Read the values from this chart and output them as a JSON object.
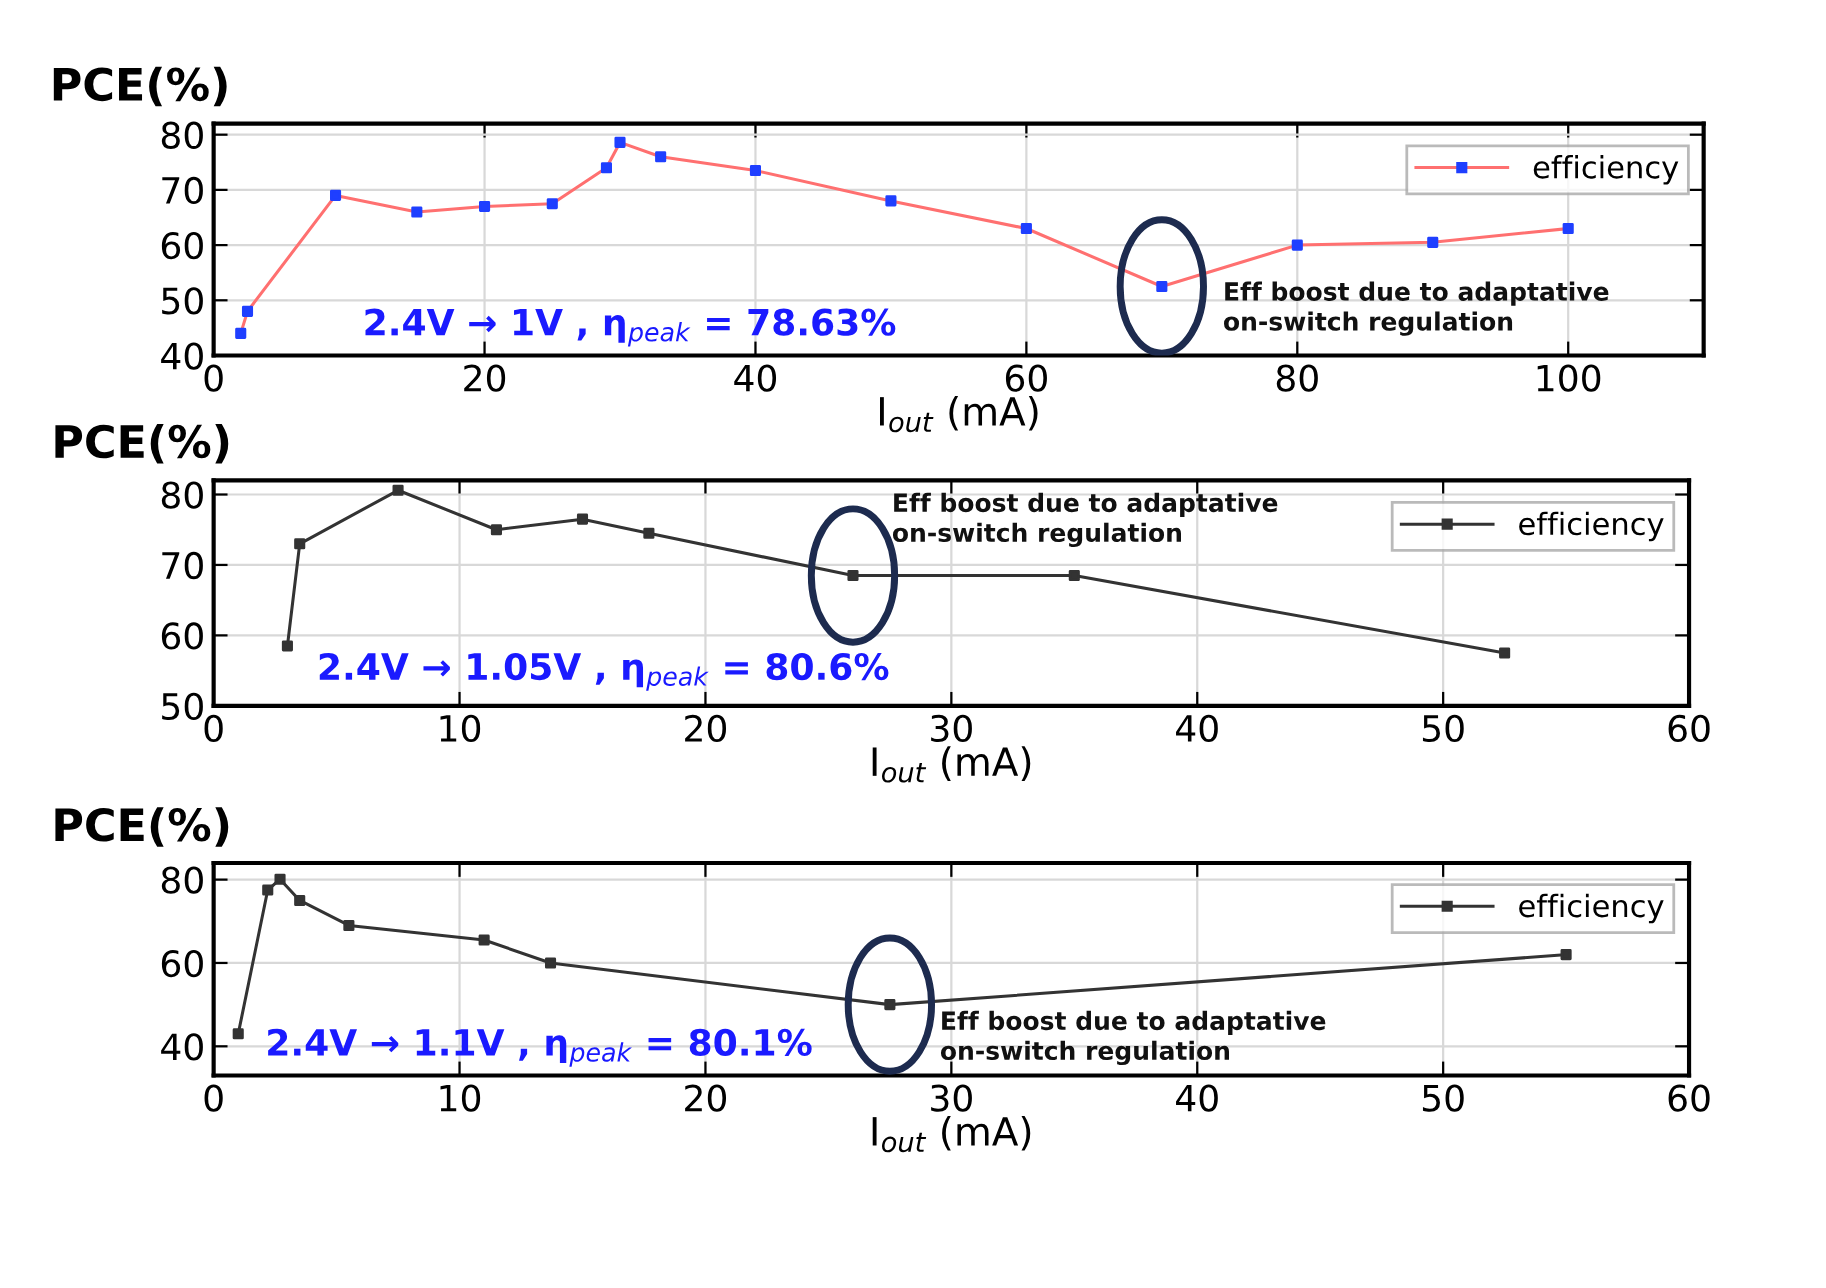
{
  "chart_data": [
    {
      "type": "line",
      "ylabel": "PCE(%)",
      "xlabel": "I$_{out}$ (mA)",
      "xlim": [
        0,
        110
      ],
      "xticks": [
        0,
        20,
        40,
        60,
        80,
        100
      ],
      "ylim": [
        40,
        82
      ],
      "yticks": [
        40,
        50,
        60,
        70,
        80
      ],
      "grid": true,
      "legend": "top right",
      "marker": "square",
      "x": [
        2,
        2.5,
        9,
        15,
        20,
        25,
        29,
        30,
        33,
        40,
        50,
        60,
        70,
        80,
        90,
        100
      ],
      "series": [
        {
          "name": "efficiency",
          "color": "#ff7070",
          "colors": [
            "#1f3fff",
            "#1f3fff",
            "#1f3fff",
            "#1f3fff",
            "#1f3fff",
            "#1f3fff",
            "#1f3fff",
            "#1f3fff",
            "#1f3fff",
            "#1f3fff",
            "#1f3fff",
            "#1f3fff",
            "#1f3fff",
            "#1f3fff",
            "#1f3fff",
            "#1f3fff"
          ],
          "values": [
            44,
            48,
            69,
            66,
            67,
            67.5,
            74,
            78.6,
            76,
            73.5,
            68,
            63,
            52.5,
            60,
            60.5,
            63
          ]
        }
      ],
      "annotations": [
        {
          "text": "Eff boost due to adaptative\non-switch regulation",
          "x": 70,
          "y": 52.5
        },
        "2.4V → 1V , η$_{peak}$ = 78.63%"
      ]
    },
    {
      "type": "line",
      "ylabel": "PCE(%)",
      "xlabel": "I$_{out}$ (mA)",
      "xlim": [
        0,
        60
      ],
      "xticks": [
        0,
        10,
        20,
        30,
        40,
        50,
        60
      ],
      "ylim": [
        50,
        82
      ],
      "yticks": [
        50,
        60,
        70,
        80
      ],
      "grid": true,
      "legend": "top right",
      "marker": "square",
      "x": [
        3,
        3.5,
        7.5,
        11.5,
        15,
        17.7,
        26,
        35,
        52.5
      ],
      "series": [
        {
          "name": "efficiency",
          "color": "#333333",
          "values": [
            58.5,
            73,
            80.6,
            75,
            76.5,
            74.5,
            68.5,
            68.5,
            57.5
          ]
        }
      ],
      "annotations": [
        {
          "text": "Eff boost due to adaptative\non-switch regulation",
          "x": 26,
          "y": 68.5
        },
        "2.4V → 1.05V , η$_{peak}$ = 80.6%"
      ]
    },
    {
      "type": "line",
      "ylabel": "PCE(%)",
      "xlabel": "I$_{out}$ (mA)",
      "xlim": [
        0,
        60
      ],
      "xticks": [
        0,
        10,
        20,
        30,
        40,
        50,
        60
      ],
      "ylim": [
        33,
        84
      ],
      "yticks": [
        40,
        60,
        80
      ],
      "grid": true,
      "legend": "top right",
      "marker": "square",
      "x": [
        1,
        2.2,
        2.7,
        3.5,
        5.5,
        11,
        13.7,
        27.5,
        55
      ],
      "series": [
        {
          "name": "efficiency",
          "color": "#333333",
          "values": [
            43,
            77.5,
            80.1,
            75,
            69,
            65.5,
            60,
            50,
            62
          ]
        }
      ],
      "annotations": [
        {
          "text": "Eff boost due to adaptative\non-switch regulation",
          "x": 27.5,
          "y": 50
        },
        "2.4V → 1.1V , η$_{peak}$ = 80.1%"
      ]
    }
  ]
}
